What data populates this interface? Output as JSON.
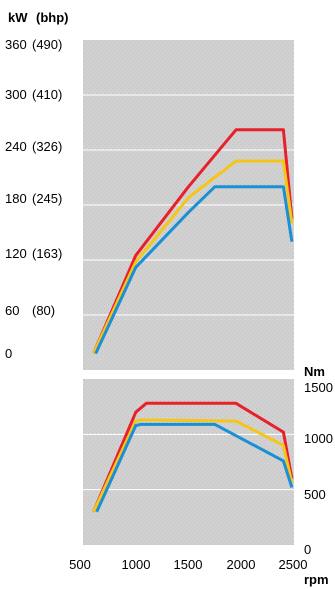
{
  "chart_data": [
    {
      "type": "line",
      "y_unit_label": "kW",
      "y_unit_label_alt": "(bhp)",
      "xlim": [
        500,
        2500
      ],
      "ylim": [
        0,
        360
      ],
      "y_ticks": [
        {
          "value": 0,
          "label": "0",
          "alt": ""
        },
        {
          "value": 60,
          "label": "60",
          "alt": "(80)"
        },
        {
          "value": 120,
          "label": "120",
          "alt": "(163)"
        },
        {
          "value": 180,
          "label": "180",
          "alt": "(245)"
        },
        {
          "value": 240,
          "label": "240",
          "alt": "(326)"
        },
        {
          "value": 300,
          "label": "300",
          "alt": "(410)"
        },
        {
          "value": 360,
          "label": "360",
          "alt": "(490)"
        }
      ],
      "grid": false,
      "series": [
        {
          "color": "#e8202a",
          "x": [
            600,
            1000,
            1500,
            1950,
            2400,
            2480
          ],
          "y": [
            18,
            125,
            200,
            262,
            262,
            165
          ]
        },
        {
          "color": "#f5c518",
          "x": [
            600,
            1000,
            1500,
            1950,
            2400,
            2480
          ],
          "y": [
            18,
            118,
            188,
            228,
            228,
            160
          ]
        },
        {
          "color": "#1a8fd6",
          "x": [
            620,
            1000,
            1500,
            1750,
            2400,
            2480
          ],
          "y": [
            18,
            112,
            172,
            200,
            200,
            140
          ]
        }
      ]
    },
    {
      "type": "line",
      "y_unit_label": "Nm",
      "xlabel": "rpm",
      "xlim": [
        500,
        2500
      ],
      "ylim": [
        0,
        1500
      ],
      "x_ticks": [
        500,
        1000,
        1500,
        2000,
        2500
      ],
      "y_ticks": [
        0,
        500,
        1000,
        1500
      ],
      "grid": true,
      "series": [
        {
          "color": "#e8202a",
          "x": [
            600,
            1000,
            1100,
            1950,
            2400,
            2480
          ],
          "y": [
            300,
            1200,
            1280,
            1280,
            1020,
            600
          ]
        },
        {
          "color": "#f5c518",
          "x": [
            600,
            1000,
            1050,
            1950,
            2400,
            2480
          ],
          "y": [
            300,
            1120,
            1130,
            1120,
            900,
            560
          ]
        },
        {
          "color": "#1a8fd6",
          "x": [
            630,
            1000,
            1050,
            1750,
            2400,
            2480
          ],
          "y": [
            300,
            1080,
            1090,
            1090,
            760,
            520
          ]
        }
      ]
    }
  ]
}
